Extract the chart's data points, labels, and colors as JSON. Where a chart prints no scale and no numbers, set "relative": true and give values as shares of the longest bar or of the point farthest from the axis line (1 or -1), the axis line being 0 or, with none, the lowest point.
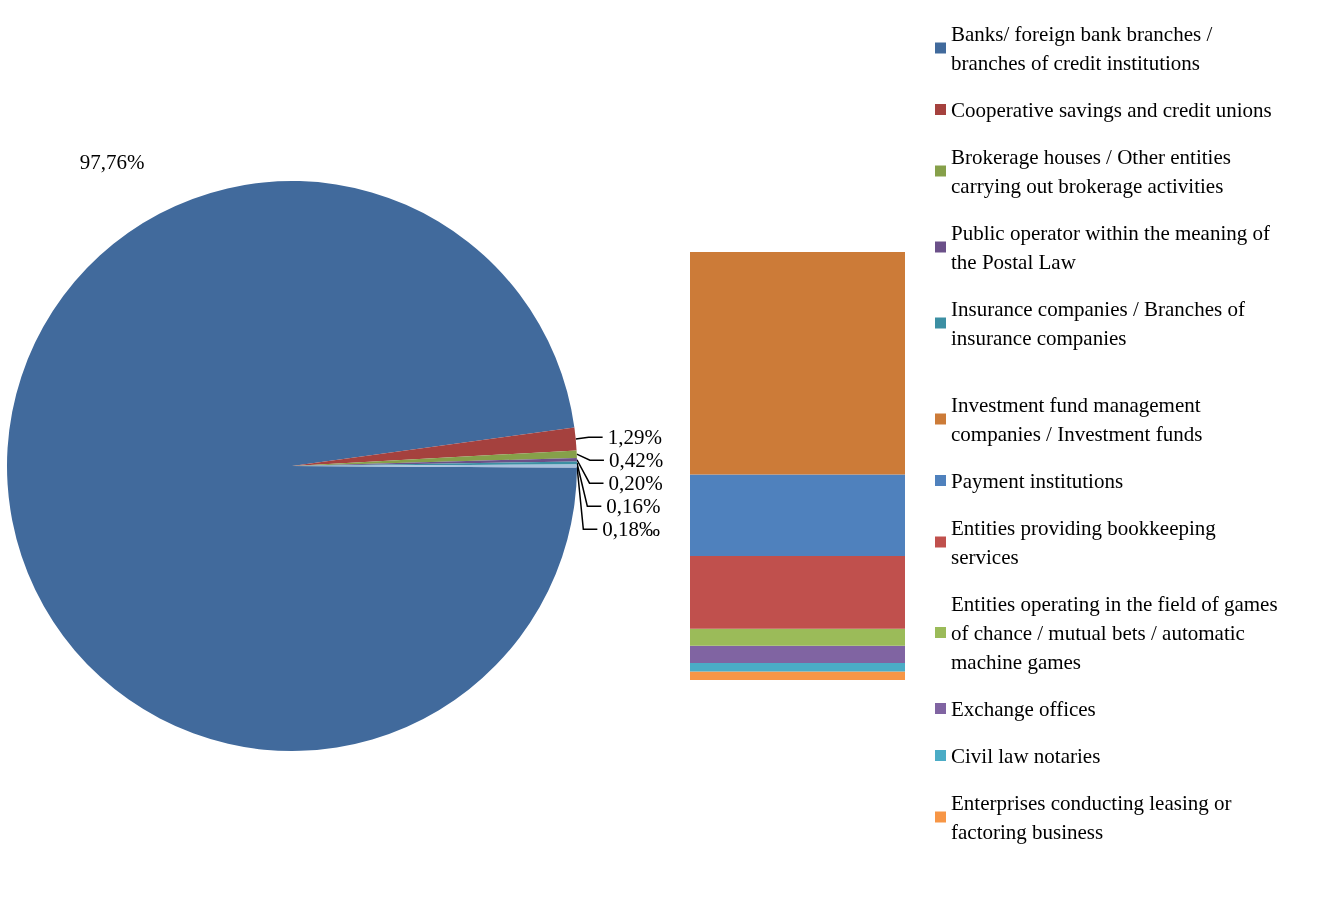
{
  "chart_data": [
    {
      "type": "pie",
      "categories": [
        "Banks/ foreign bank branches / branches of credit institutions",
        "Cooperative savings and credit unions",
        "Brokerage houses / Other entities carrying out brokerage activities",
        "Public operator within the meaning of the Postal Law",
        "Insurance companies / Branches of insurance companies",
        null
      ],
      "values": [
        97.76,
        1.29,
        0.42,
        0.2,
        0.16,
        0.18
      ],
      "value_labels": [
        "97,76%",
        "1,29%",
        "0,42%",
        "0,20%",
        "0,16%",
        "0,18‰"
      ],
      "colors": [
        "#416a9c",
        "#a5413e",
        "#86a04a",
        "#6b5089",
        "#3c8fa3",
        "#a6c0dd"
      ],
      "legend": "right"
    },
    {
      "type": "bar",
      "stacked": true,
      "relative": true,
      "categories": [
        null
      ],
      "legend": "right",
      "series": [
        {
          "name": "Enterprises conducting leasing or factoring business",
          "color": "#f79646",
          "values": [
            0.02
          ]
        },
        {
          "name": "Civil law notaries",
          "color": "#4bacc6",
          "values": [
            0.02
          ]
        },
        {
          "name": "Exchange offices",
          "color": "#8064a2",
          "values": [
            0.04
          ]
        },
        {
          "name": "Entities operating in the field of games of chance / mutual bets / automatic machine games",
          "color": "#9bbb59",
          "values": [
            0.04
          ]
        },
        {
          "name": "Entities providing bookkeeping services",
          "color": "#c0504d",
          "values": [
            0.17
          ]
        },
        {
          "name": "Payment institutions",
          "color": "#4f81bd",
          "values": [
            0.19
          ]
        },
        {
          "name": "Investment fund management companies / Investment funds",
          "color": "#cc7b38",
          "values": [
            0.52
          ]
        }
      ]
    }
  ]
}
